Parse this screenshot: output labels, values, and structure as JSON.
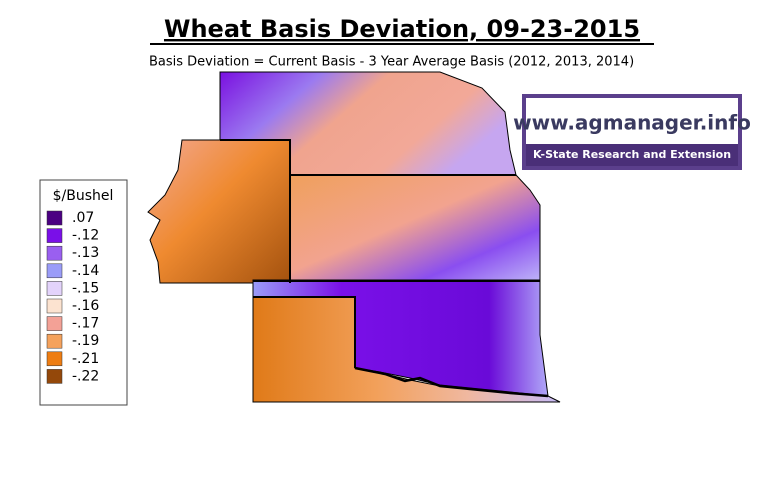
{
  "title": "Wheat Basis Deviation, 09-23-2015",
  "subtitle": "Basis Deviation = Current Basis - 3 Year Average Basis (2012, 2013, 2014)",
  "legend": {
    "title": "$/Bushel",
    "items": [
      {
        "label": ".07",
        "color": "#4b0082"
      },
      {
        "label": "-.12",
        "color": "#7a0fe8"
      },
      {
        "label": "-.13",
        "color": "#9a5ff0"
      },
      {
        "label": "-.14",
        "color": "#9a9cf8"
      },
      {
        "label": "-.15",
        "color": "#e3d3fb"
      },
      {
        "label": "-.16",
        "color": "#fce3d0"
      },
      {
        "label": "-.17",
        "color": "#f3a196"
      },
      {
        "label": "-.19",
        "color": "#f5a25c"
      },
      {
        "label": "-.21",
        "color": "#ee7d12"
      },
      {
        "label": "-.22",
        "color": "#94480a"
      }
    ]
  },
  "logo": {
    "url": "www.agmanager.info",
    "org": "K-State Research and Extension"
  }
}
